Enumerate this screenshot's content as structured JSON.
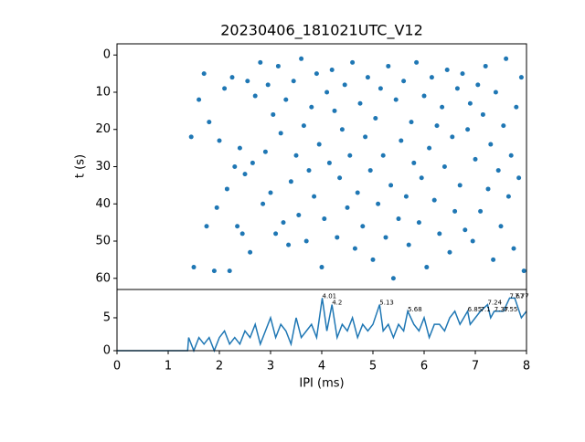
{
  "chart_data": [
    {
      "type": "scatter",
      "title": "20230406_181021UTC_V12",
      "ylabel": "t (s)",
      "color": "#1f77b4",
      "xlim": [
        0,
        8
      ],
      "ylim": [
        -3,
        63
      ],
      "inverted_y": true,
      "yticks": [
        0,
        10,
        20,
        30,
        40,
        50,
        60
      ],
      "x": [
        1.45,
        1.5,
        1.6,
        1.7,
        1.75,
        1.8,
        1.9,
        1.95,
        2.0,
        2.1,
        2.15,
        2.2,
        2.25,
        2.3,
        2.35,
        2.4,
        2.45,
        2.5,
        2.55,
        2.6,
        2.65,
        2.7,
        2.8,
        2.85,
        2.9,
        2.95,
        3.0,
        3.05,
        3.1,
        3.15,
        3.2,
        3.25,
        3.3,
        3.35,
        3.4,
        3.45,
        3.5,
        3.55,
        3.6,
        3.65,
        3.7,
        3.75,
        3.8,
        3.85,
        3.9,
        3.95,
        4.0,
        4.05,
        4.1,
        4.15,
        4.2,
        4.25,
        4.3,
        4.35,
        4.4,
        4.45,
        4.5,
        4.55,
        4.6,
        4.65,
        4.7,
        4.75,
        4.8,
        4.85,
        4.9,
        4.95,
        5.0,
        5.05,
        5.1,
        5.15,
        5.2,
        5.25,
        5.3,
        5.35,
        5.4,
        5.45,
        5.5,
        5.55,
        5.6,
        5.65,
        5.7,
        5.75,
        5.8,
        5.85,
        5.9,
        5.95,
        6.0,
        6.05,
        6.1,
        6.15,
        6.2,
        6.25,
        6.3,
        6.35,
        6.4,
        6.45,
        6.5,
        6.55,
        6.6,
        6.65,
        6.7,
        6.75,
        6.8,
        6.85,
        6.9,
        6.95,
        7.0,
        7.05,
        7.1,
        7.15,
        7.2,
        7.25,
        7.3,
        7.35,
        7.4,
        7.45,
        7.5,
        7.55,
        7.6,
        7.65,
        7.7,
        7.75,
        7.8,
        7.85,
        7.9,
        7.95
      ],
      "y": [
        22,
        57,
        12,
        5,
        46,
        18,
        58,
        41,
        23,
        9,
        36,
        58,
        6,
        30,
        46,
        25,
        48,
        32,
        7,
        53,
        29,
        11,
        2,
        40,
        26,
        8,
        37,
        16,
        48,
        3,
        21,
        45,
        12,
        51,
        34,
        7,
        27,
        43,
        1,
        19,
        50,
        31,
        14,
        38,
        5,
        24,
        57,
        44,
        10,
        29,
        4,
        15,
        49,
        33,
        20,
        8,
        41,
        27,
        2,
        52,
        37,
        13,
        46,
        22,
        6,
        31,
        55,
        17,
        40,
        9,
        27,
        49,
        3,
        35,
        60,
        12,
        44,
        23,
        7,
        38,
        51,
        18,
        29,
        2,
        45,
        33,
        11,
        57,
        25,
        6,
        39,
        19,
        48,
        14,
        30,
        4,
        53,
        22,
        42,
        9,
        35,
        5,
        47,
        20,
        13,
        50,
        28,
        8,
        42,
        16,
        3,
        36,
        24,
        55,
        10,
        31,
        46,
        19,
        1,
        38,
        27,
        52,
        14,
        33,
        6,
        58
      ]
    },
    {
      "type": "line",
      "xlabel": "IPI (ms)",
      "color": "#1f77b4",
      "xlim": [
        0,
        8
      ],
      "ylim": [
        0,
        9.3
      ],
      "xticks": [
        0,
        1,
        2,
        3,
        4,
        5,
        6,
        7,
        8
      ],
      "yticks": [
        0,
        5
      ],
      "x": [
        0,
        1.38,
        1.4,
        1.5,
        1.6,
        1.7,
        1.8,
        1.9,
        2.0,
        2.1,
        2.2,
        2.3,
        2.4,
        2.5,
        2.6,
        2.7,
        2.8,
        2.9,
        3.0,
        3.1,
        3.2,
        3.3,
        3.4,
        3.5,
        3.6,
        3.7,
        3.8,
        3.9,
        4.01,
        4.1,
        4.2,
        4.3,
        4.4,
        4.5,
        4.6,
        4.7,
        4.8,
        4.9,
        5.0,
        5.13,
        5.2,
        5.3,
        5.4,
        5.5,
        5.6,
        5.68,
        5.8,
        5.9,
        6.0,
        6.1,
        6.2,
        6.3,
        6.4,
        6.5,
        6.6,
        6.7,
        6.85,
        6.9,
        7.0,
        7.1,
        7.24,
        7.3,
        7.37,
        7.45,
        7.55,
        7.67,
        7.77,
        7.9,
        8.0
      ],
      "values": [
        0,
        0,
        2,
        0,
        2,
        1,
        2,
        0,
        2,
        3,
        1,
        2,
        1,
        3,
        2,
        4,
        1,
        3,
        5,
        2,
        4,
        3,
        1,
        5,
        2,
        3,
        4,
        2,
        8,
        3,
        7,
        2,
        4,
        3,
        5,
        2,
        4,
        3,
        4,
        7,
        3,
        4,
        2,
        4,
        3,
        6,
        4,
        3,
        5,
        2,
        4,
        4,
        3,
        5,
        6,
        4,
        6,
        4,
        5,
        6,
        7,
        5,
        6,
        6,
        6,
        8,
        8,
        5,
        6
      ],
      "annotations": [
        {
          "label": "4.01",
          "x": 4.01,
          "y": 8
        },
        {
          "label": "4.2",
          "x": 4.2,
          "y": 7
        },
        {
          "label": "5.13",
          "x": 5.13,
          "y": 7
        },
        {
          "label": "5.68",
          "x": 5.68,
          "y": 6
        },
        {
          "label": "6.85",
          "x": 6.85,
          "y": 6
        },
        {
          "label": "7.1",
          "x": 7.1,
          "y": 6
        },
        {
          "label": "7.24",
          "x": 7.24,
          "y": 7
        },
        {
          "label": "7.37",
          "x": 7.37,
          "y": 6
        },
        {
          "label": "7.55",
          "x": 7.55,
          "y": 6
        },
        {
          "label": "7.67",
          "x": 7.67,
          "y": 8
        },
        {
          "label": "7.77",
          "x": 7.77,
          "y": 8
        }
      ]
    }
  ]
}
